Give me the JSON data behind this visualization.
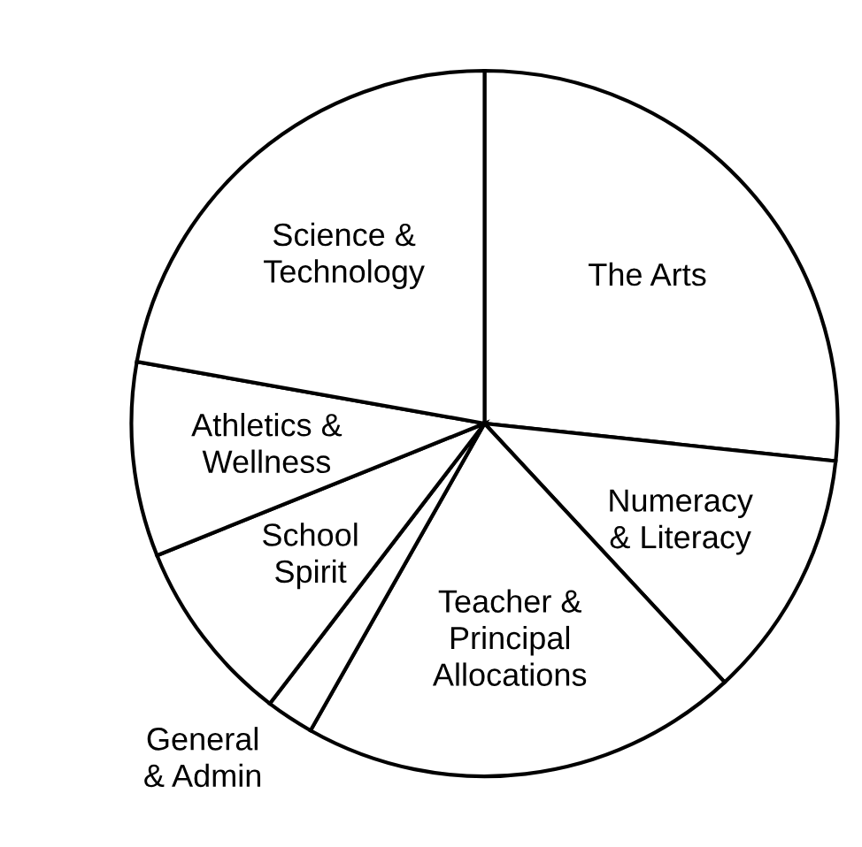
{
  "chart_data": {
    "type": "pie",
    "categories": [
      "The Arts",
      "Numeracy\n& Literacy",
      "Teacher &\nPrincipal\nAllocations",
      "General\n& Admin",
      "School\nSpirit",
      "Athletics &\nWellness",
      "Science &\nTechnology"
    ],
    "values": [
      26.7,
      11.4,
      20.1,
      2.2,
      8.5,
      8.9,
      22.2
    ],
    "colors": [
      "#ffffff",
      "#ffffff",
      "#ffffff",
      "#ffffff",
      "#ffffff",
      "#ffffff",
      "#ffffff"
    ],
    "legend": false
  }
}
